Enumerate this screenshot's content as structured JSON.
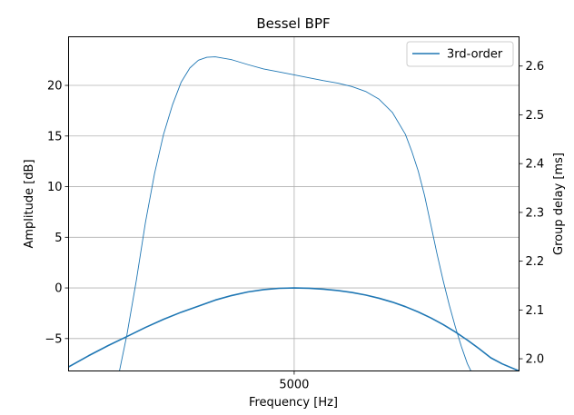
{
  "chart_data": {
    "type": "line",
    "title": "Bessel BPF",
    "xlabel": "Frequency [Hz]",
    "ylabel": "Amplitude [dB]",
    "y2label": "Group delay [ms]",
    "x_scale": "log",
    "x_range": [
      3700,
      6750
    ],
    "x_ticks": [
      5000
    ],
    "x_tick_labels": [
      "5000"
    ],
    "ylim": [
      -8.2,
      24.8
    ],
    "y_ticks": [
      -5,
      0,
      5,
      10,
      15,
      20
    ],
    "y_tick_labels": [
      "−5",
      "0",
      "5",
      "10",
      "15",
      "20"
    ],
    "y2lim": [
      1.975,
      2.66
    ],
    "y2_ticks": [
      2.0,
      2.1,
      2.2,
      2.3,
      2.4,
      2.5,
      2.6
    ],
    "y2_tick_labels": [
      "2.0",
      "2.1",
      "2.2",
      "2.3",
      "2.4",
      "2.5",
      "2.6"
    ],
    "grid": true,
    "legend_position": "top-right",
    "series": [
      {
        "name": "3rd-order",
        "axis": "left",
        "line": "thick",
        "x": [
          3700,
          3800,
          3900,
          4000,
          4100,
          4200,
          4300,
          4400,
          4500,
          4600,
          4700,
          4800,
          4900,
          5000,
          5100,
          5200,
          5300,
          5400,
          5500,
          5600,
          5700,
          5800,
          5900,
          6000,
          6100,
          6200,
          6300,
          6400,
          6500,
          6600,
          6750
        ],
        "values": [
          -7.8,
          -6.7,
          -5.7,
          -4.8,
          -3.9,
          -3.1,
          -2.4,
          -1.8,
          -1.2,
          -0.75,
          -0.4,
          -0.17,
          -0.04,
          0.0,
          -0.03,
          -0.12,
          -0.26,
          -0.45,
          -0.7,
          -1.02,
          -1.4,
          -1.85,
          -2.37,
          -2.96,
          -3.62,
          -4.35,
          -5.15,
          -6.0,
          -6.9,
          -7.5,
          -8.2
        ]
      },
      {
        "axis": "right",
        "line": "thin",
        "x": [
          3960,
          4000,
          4050,
          4100,
          4150,
          4200,
          4250,
          4300,
          4350,
          4400,
          4450,
          4500,
          4600,
          4700,
          4800,
          4900,
          5000,
          5100,
          5200,
          5300,
          5400,
          5500,
          5600,
          5700,
          5800,
          5850,
          5900,
          5950,
          6000,
          6050,
          6100,
          6150,
          6200,
          6250,
          6300,
          6330
        ],
        "values": [
          1.975,
          2.05,
          2.16,
          2.28,
          2.38,
          2.46,
          2.52,
          2.567,
          2.596,
          2.612,
          2.618,
          2.619,
          2.613,
          2.603,
          2.594,
          2.588,
          2.582,
          2.576,
          2.57,
          2.565,
          2.558,
          2.548,
          2.532,
          2.505,
          2.46,
          2.425,
          2.385,
          2.335,
          2.275,
          2.215,
          2.16,
          2.11,
          2.065,
          2.025,
          1.99,
          1.975
        ]
      }
    ]
  }
}
